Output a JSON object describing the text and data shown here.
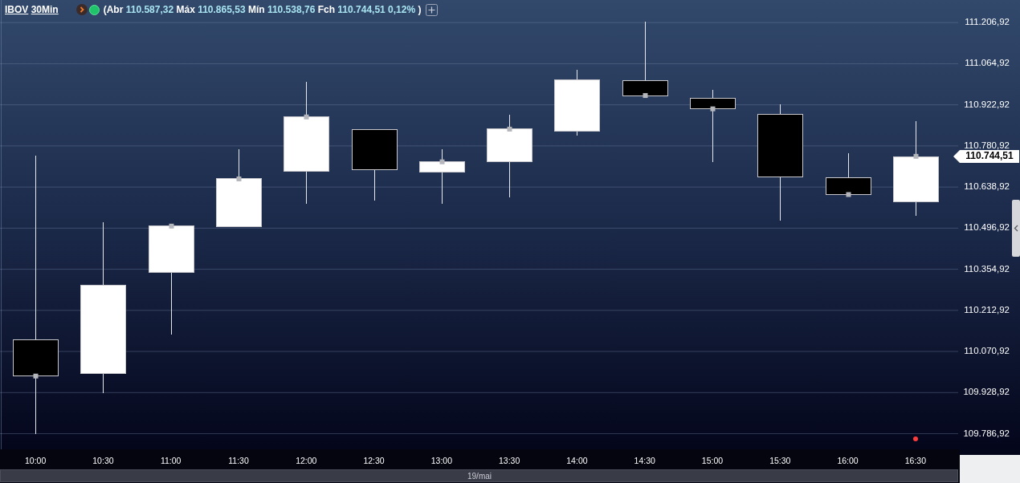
{
  "chart_data": {
    "type": "candlestick",
    "title": "IBOV 30Min",
    "subtitle": "(Abr 110.587,32 Máx 110.865,53 Mín 110.538,76 Fch 110.744,51 0,12% )",
    "xlabel": "19/mai",
    "categories": [
      "10:00",
      "10:30",
      "11:00",
      "11:30",
      "12:00",
      "12:30",
      "13:00",
      "13:30",
      "14:00",
      "14:30",
      "15:00",
      "15:30",
      "16:00",
      "16:30"
    ],
    "ohlc": [
      [
        110112,
        110748,
        109785,
        109986
      ],
      [
        109994,
        110517,
        109928,
        110301
      ],
      [
        110345,
        110510,
        110129,
        110504
      ],
      [
        110501,
        110769,
        110501,
        110667
      ],
      [
        110692,
        111002,
        110581,
        110881
      ],
      [
        110838,
        110838,
        110593,
        110699
      ],
      [
        110690,
        110770,
        110582,
        110726
      ],
      [
        110726,
        110889,
        110604,
        110839
      ],
      [
        110831,
        111044,
        110818,
        111008
      ],
      [
        111007,
        111211,
        110955,
        110955
      ],
      [
        110946,
        110975,
        110726,
        110909
      ],
      [
        110891,
        110925,
        110523,
        110674
      ],
      [
        110672,
        110756,
        110613,
        110613
      ],
      [
        110587.32,
        110865.53,
        110538.76,
        110744.51
      ]
    ],
    "colors": [
      "#000000",
      "#ffffff",
      "#ffffff",
      "#ffffff",
      "#ffffff",
      "#000000",
      "#ffffff",
      "#ffffff",
      "#ffffff",
      "#000000",
      "#000000",
      "#000000",
      "#000000",
      "#ffffff"
    ],
    "series": [
      {
        "type": "scatter",
        "color": "#b4b6bc",
        "values": [
          109986,
          null,
          110504,
          110667,
          110881,
          null,
          110726,
          110839,
          null,
          110955,
          110909,
          null,
          110613,
          110745
        ]
      }
    ],
    "marker": "square",
    "ylim": [
      109733,
      111285
    ],
    "yticks": [
      {
        "value": 109786.92,
        "label": "109.786,92"
      },
      {
        "value": 109928.92,
        "label": "109.928,92"
      },
      {
        "value": 110070.92,
        "label": "110.070,92"
      },
      {
        "value": 110212.92,
        "label": "110.212,92"
      },
      {
        "value": 110354.92,
        "label": "110.354,92"
      },
      {
        "value": 110496.92,
        "label": "110.496,92"
      },
      {
        "value": 110638.92,
        "label": "110.638,92"
      },
      {
        "value": 110780.92,
        "label": "110.780,92"
      },
      {
        "value": 110922.92,
        "label": "110.922,92"
      },
      {
        "value": 111064.92,
        "label": "111.064,92"
      },
      {
        "value": 111206.92,
        "label": "111.206,92"
      }
    ],
    "grid": "y",
    "annotations": [
      "110.744,51"
    ]
  }
}
